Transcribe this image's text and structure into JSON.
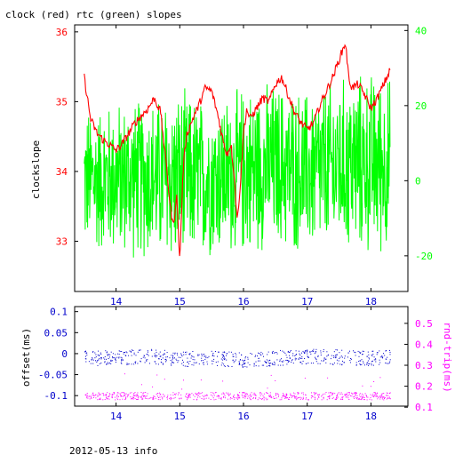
{
  "title": "clock (red) rtc (green) slopes",
  "footer": "2012-05-13 info",
  "colors": {
    "red": "#ff0000",
    "green": "#00ff00",
    "blue": "#0000cc",
    "magenta": "#ff00ff",
    "frame": "#000000"
  },
  "chart_data": [
    {
      "type": "line",
      "title": "clock (red) rtc (green) slopes",
      "xlim": [
        13.35,
        18.58
      ],
      "x_ticks": [
        14,
        15,
        16,
        17,
        18
      ],
      "x_tick_labels": [
        "14",
        "15",
        "16",
        "17",
        "18"
      ],
      "y_left": {
        "label": "clockslope",
        "lim": [
          32.28,
          36.1
        ],
        "ticks": [
          33,
          34,
          35,
          36
        ],
        "tick_labels": [
          "33",
          "34",
          "35",
          "36"
        ],
        "color": "#ff0000"
      },
      "y_right": {
        "label": "",
        "lim": [
          -29.5,
          41.5
        ],
        "ticks": [
          -20,
          0,
          20,
          40
        ],
        "tick_labels": [
          "-20",
          "0",
          "20",
          "40"
        ],
        "color": "#00ff00"
      },
      "series": [
        {
          "axis": "left",
          "color": "#ff0000",
          "x": [
            13.5,
            13.55,
            13.6,
            13.7,
            13.8,
            13.9,
            14.0,
            14.1,
            14.2,
            14.3,
            14.4,
            14.5,
            14.6,
            14.7,
            14.75,
            14.8,
            14.85,
            14.9,
            14.95,
            15.0,
            15.05,
            15.1,
            15.2,
            15.3,
            15.4,
            15.5,
            15.6,
            15.7,
            15.75,
            15.8,
            15.85,
            15.9,
            15.95,
            16.0,
            16.05,
            16.1,
            16.2,
            16.3,
            16.4,
            16.5,
            16.6,
            16.7,
            16.8,
            16.9,
            17.0,
            17.1,
            17.2,
            17.3,
            17.4,
            17.5,
            17.6,
            17.65,
            17.7,
            17.8,
            17.9,
            18.0,
            18.1,
            18.2,
            18.3
          ],
          "y": [
            35.35,
            35.05,
            34.75,
            34.55,
            34.45,
            34.38,
            34.3,
            34.4,
            34.55,
            34.7,
            34.8,
            34.9,
            35.05,
            34.85,
            34.4,
            34.0,
            33.5,
            33.2,
            33.7,
            32.7,
            34.0,
            34.5,
            34.75,
            34.95,
            35.2,
            35.15,
            34.8,
            34.35,
            34.25,
            34.4,
            34.0,
            33.3,
            33.8,
            34.55,
            34.9,
            34.75,
            34.9,
            35.05,
            35.0,
            35.25,
            35.35,
            35.1,
            34.85,
            34.7,
            34.6,
            34.7,
            34.95,
            35.15,
            35.35,
            35.6,
            35.85,
            35.35,
            35.2,
            35.25,
            35.1,
            34.9,
            35.05,
            35.25,
            35.45
          ]
        },
        {
          "axis": "right",
          "color": "#00ff00",
          "render": "dense noise band",
          "x": [
            13.5,
            14.0,
            14.5,
            15.0,
            15.5,
            16.0,
            16.5,
            17.0,
            17.5,
            18.0,
            18.3
          ],
          "y_min": [
            -21,
            -22,
            -23,
            -25,
            -22,
            -22,
            -20,
            -22,
            -21,
            -22,
            -21
          ],
          "y_max": [
            21,
            23,
            24,
            26,
            23,
            27,
            28,
            26,
            29,
            31,
            30
          ]
        }
      ]
    },
    {
      "type": "scatter",
      "xlim": [
        13.35,
        18.58
      ],
      "x_ticks": [
        14,
        15,
        16,
        17,
        18
      ],
      "x_tick_labels": [
        "14",
        "15",
        "16",
        "17",
        "18"
      ],
      "y_left": {
        "label": "offset(ms)",
        "lim": [
          -0.125,
          0.112
        ],
        "ticks": [
          -0.1,
          -0.05,
          0,
          0.05,
          0.1
        ],
        "tick_labels": [
          "-0.1",
          "-0.05",
          "0",
          "0.05",
          "0.1"
        ],
        "color": "#0000cc"
      },
      "y_right": {
        "label": "rnd-trip(ms)",
        "lim": [
          0.105,
          0.58
        ],
        "ticks": [
          0.1,
          0.2,
          0.3,
          0.4,
          0.5
        ],
        "tick_labels": [
          "0.1",
          "0.2",
          "0.3",
          "0.4",
          "0.5"
        ],
        "color": "#ff00ff"
      },
      "series": [
        {
          "axis": "left",
          "color": "#0000cc",
          "x": [
            13.5,
            14.0,
            14.5,
            15.0,
            15.5,
            16.0,
            16.5,
            17.0,
            17.5,
            18.0,
            18.3
          ],
          "center": [
            -0.01,
            -0.01,
            -0.005,
            -0.012,
            -0.01,
            -0.015,
            -0.01,
            -0.005,
            -0.008,
            -0.01,
            -0.005
          ],
          "spread": 0.018
        },
        {
          "axis": "right",
          "color": "#ff00ff",
          "x": [
            13.5,
            14.0,
            14.5,
            15.0,
            15.5,
            16.0,
            16.5,
            17.0,
            17.5,
            18.0,
            18.3
          ],
          "center": [
            0.155,
            0.155,
            0.155,
            0.155,
            0.155,
            0.155,
            0.155,
            0.155,
            0.155,
            0.155,
            0.155
          ],
          "spread": 0.018
        }
      ]
    }
  ]
}
